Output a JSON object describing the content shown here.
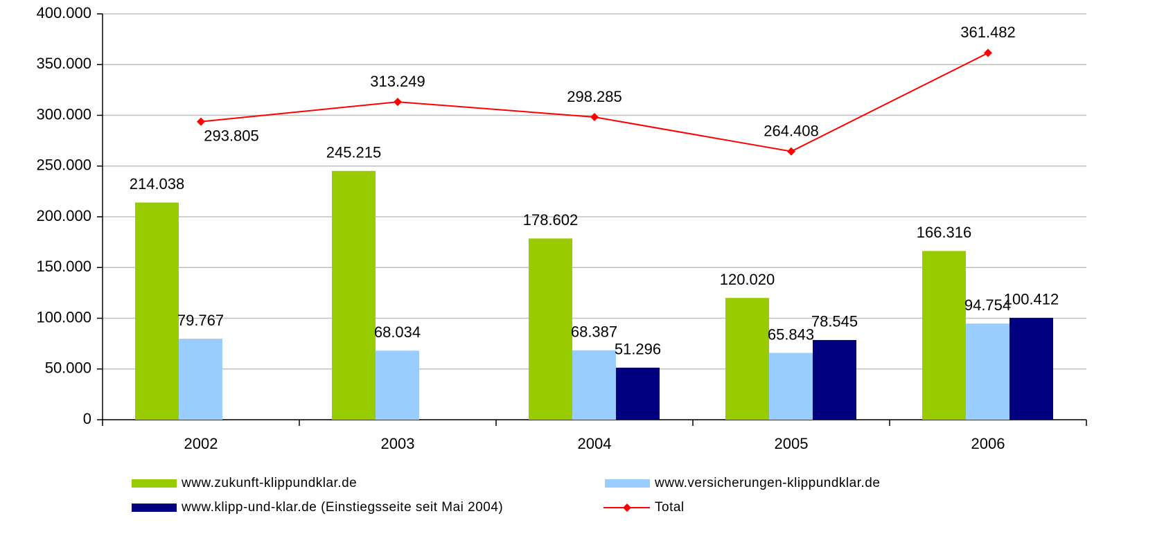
{
  "chart_data": {
    "type": "bar",
    "categories": [
      "2002",
      "2003",
      "2004",
      "2005",
      "2006"
    ],
    "series": [
      {
        "name": "www.zukunft-klippundklar.de",
        "color": "#99cc00",
        "values": [
          214038,
          245215,
          178602,
          120020,
          166316
        ],
        "value_labels": [
          "214.038",
          "245.215",
          "178.602",
          "120.020",
          "166.316"
        ]
      },
      {
        "name": "www.versicherungen-klippundklar.de",
        "color": "#99ccff",
        "values": [
          79767,
          68034,
          68387,
          65843,
          94754
        ],
        "value_labels": [
          "79.767",
          "68.034",
          "68.387",
          "65.843",
          "94.754"
        ]
      },
      {
        "name": "www.klipp-und-klar.de (Einstiegsseite seit Mai 2004)",
        "color": "#000080",
        "values": [
          null,
          null,
          51296,
          78545,
          100412
        ],
        "value_labels": [
          null,
          null,
          "51.296",
          "78.545",
          "100.412"
        ]
      },
      {
        "name": "Total",
        "type": "line",
        "color": "#ff0000",
        "values": [
          293805,
          313249,
          298285,
          264408,
          361482
        ],
        "value_labels": [
          "293.805",
          "313.249",
          "298.285",
          "264.408",
          "361.482"
        ]
      }
    ],
    "ylim": [
      0,
      400000
    ],
    "yticks": [
      0,
      {
        "value": 50000,
        "label": "50.000"
      },
      {
        "value": 100000,
        "label": "100.000"
      },
      {
        "value": 150000,
        "label": "150.000"
      },
      {
        "value": 200000,
        "label": "200.000"
      },
      {
        "value": 250000,
        "label": "250.000"
      },
      {
        "value": 300000,
        "label": "300.000"
      },
      {
        "value": 350000,
        "label": "350.000"
      },
      {
        "value": 400000,
        "label": "400.000"
      }
    ],
    "grid": true
  }
}
